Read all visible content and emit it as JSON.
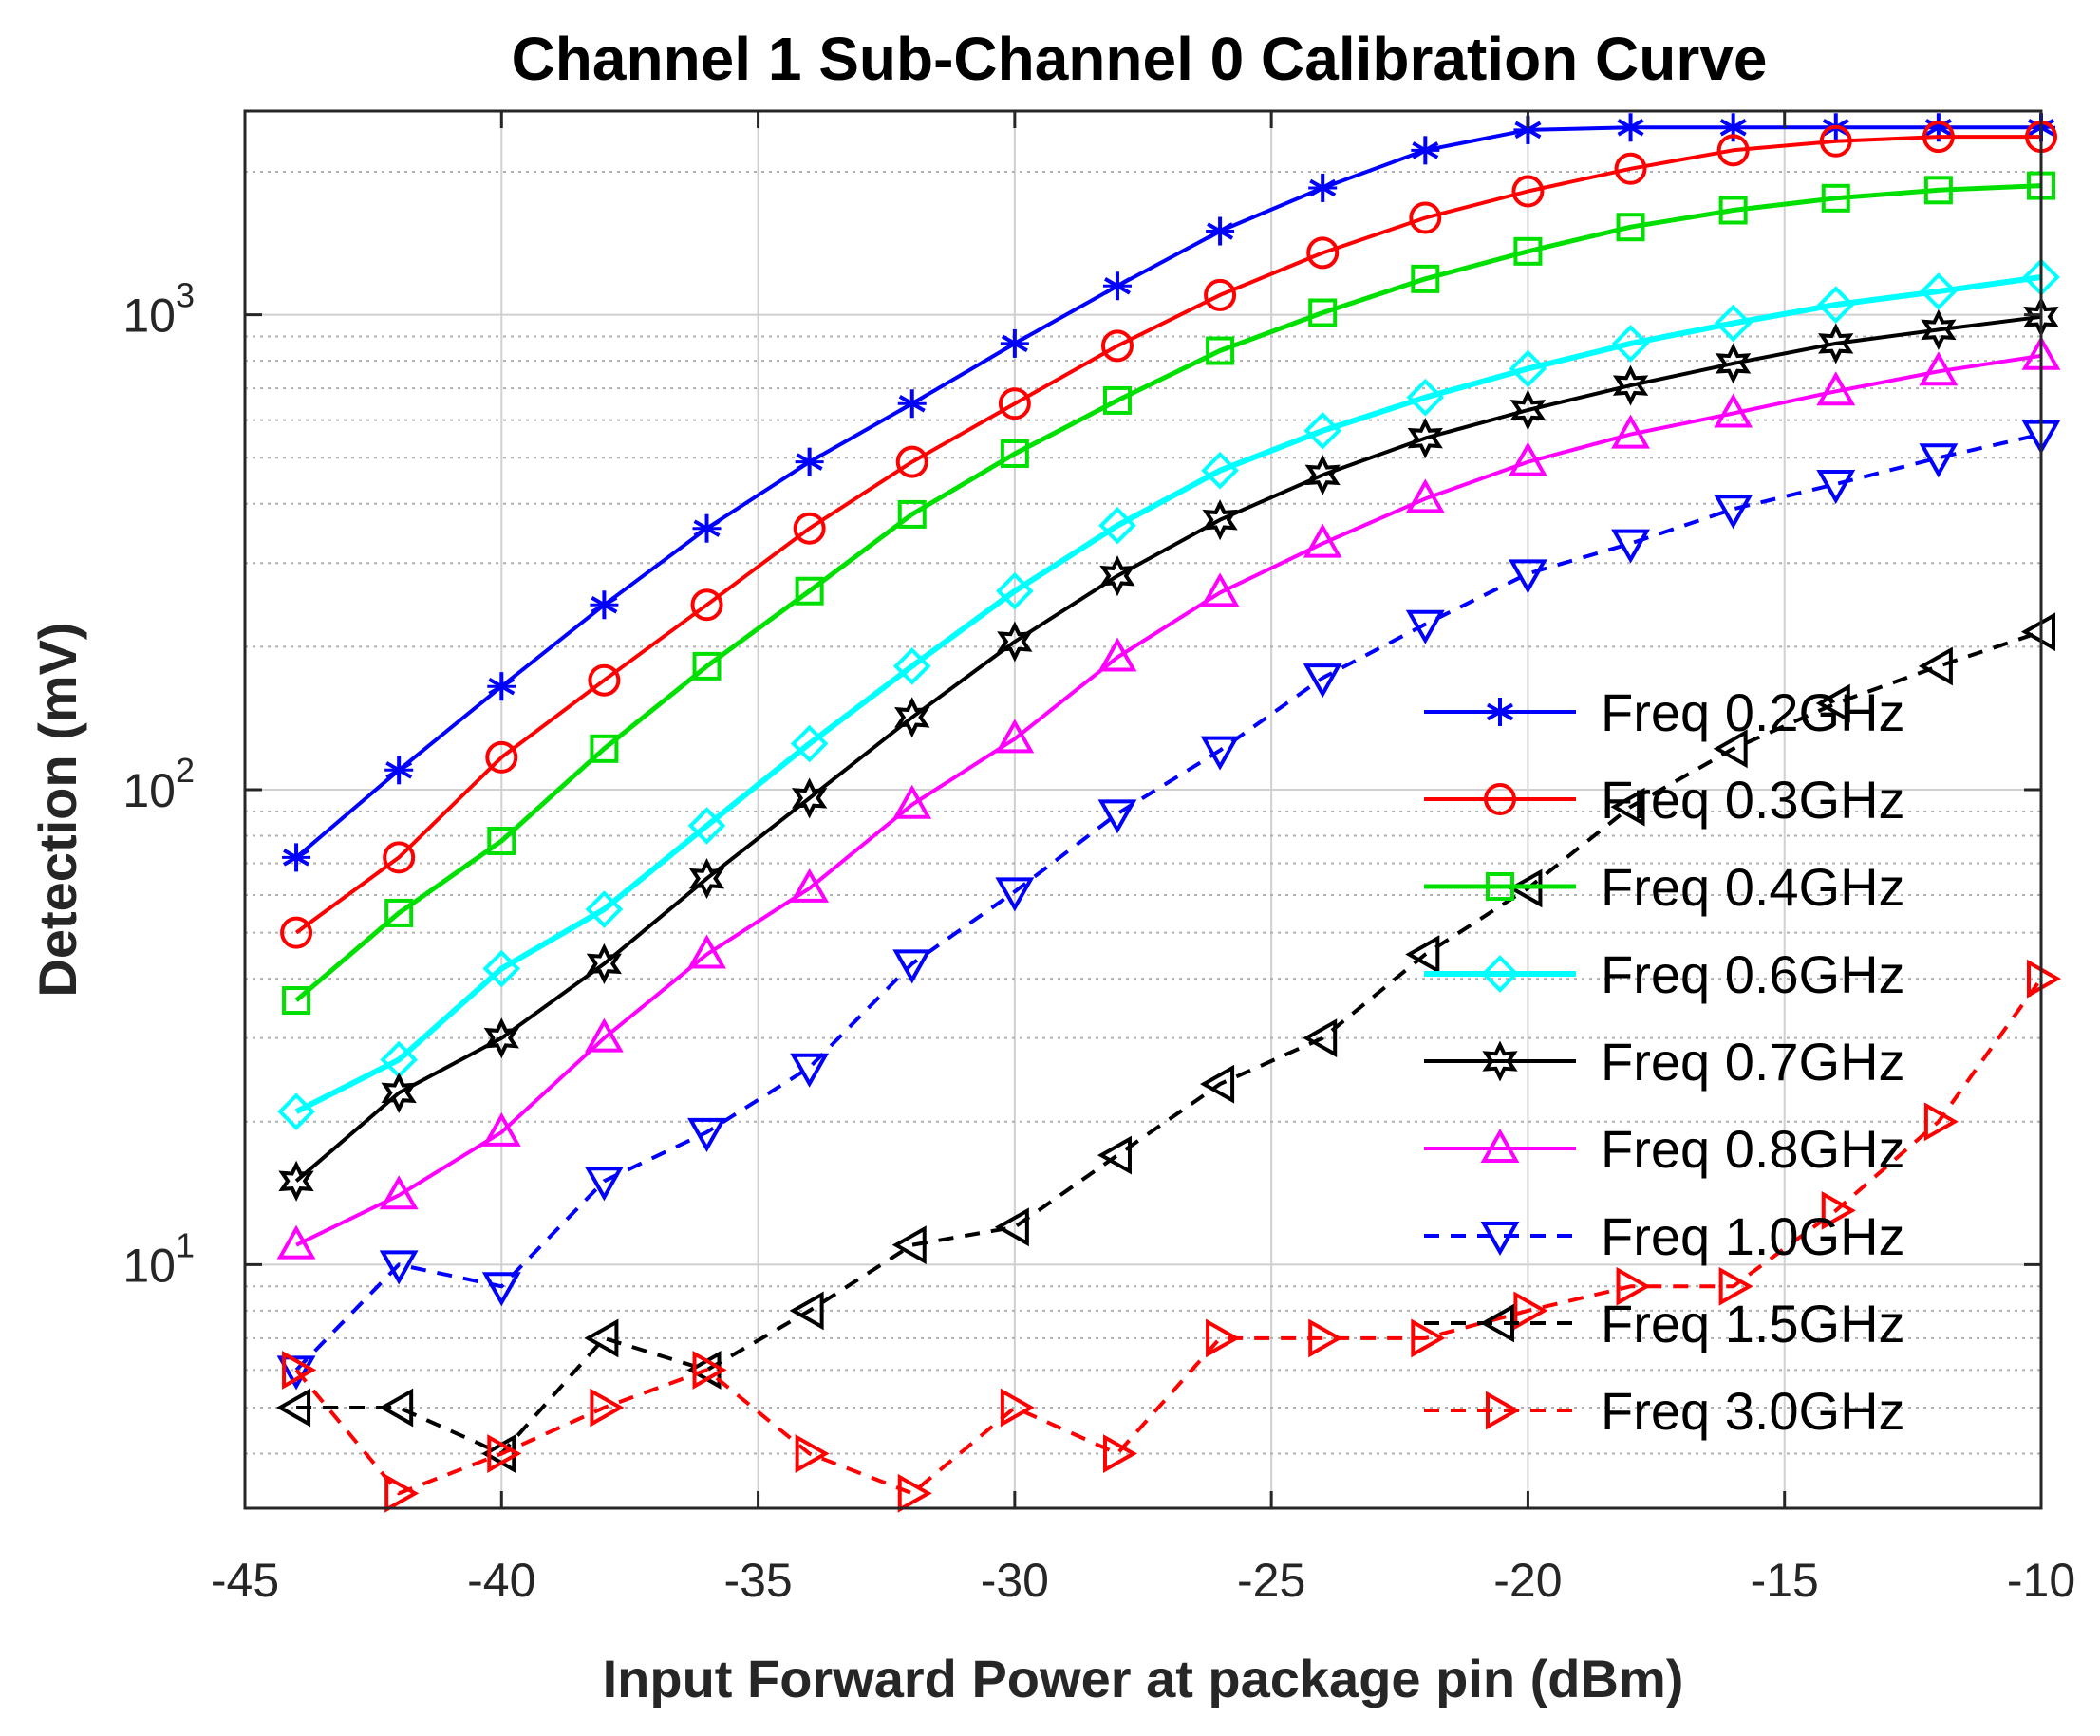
{
  "colors": {
    "blue": "#0000ff",
    "red": "#ff0000",
    "green": "#00e000",
    "cyan": "#00ffff",
    "black": "#000000",
    "magenta": "#ff00ff",
    "grid": "#d0d0d0",
    "minor_grid": "#b0b0b0"
  },
  "chart_data": {
    "type": "line",
    "title": "Channel 1 Sub-Channel 0 Calibration Curve",
    "xlabel": "Input Forward Power at package pin (dBm)",
    "ylabel": "Detection (mV)",
    "xlim": [
      -45,
      -10
    ],
    "ylim": [
      3.2,
      2600
    ],
    "yscale": "log",
    "grid": true,
    "legend_position": "bottom-right",
    "x_ticks": [
      -45,
      -40,
      -35,
      -30,
      -25,
      -20,
      -15,
      -10
    ],
    "x_tick_labels": [
      "-45",
      "-40",
      "-35",
      "-30",
      "-25",
      "-20",
      "-15",
      "-10"
    ],
    "y_ticks": [
      10,
      100,
      1000
    ],
    "y_tick_labels": [
      {
        "base": "10",
        "exp": "1"
      },
      {
        "base": "10",
        "exp": "2"
      },
      {
        "base": "10",
        "exp": "3"
      }
    ],
    "x": [
      -44,
      -42,
      -40,
      -38,
      -36,
      -34,
      -32,
      -30,
      -28,
      -26,
      -24,
      -22,
      -20,
      -18,
      -16,
      -14,
      -12,
      -10
    ],
    "series": [
      {
        "name": "Freq 0.2GHz",
        "color": "#0000ff",
        "marker": "asterisk",
        "dash": false,
        "width": 4,
        "values": [
          72,
          110,
          165,
          245,
          355,
          490,
          650,
          870,
          1150,
          1500,
          1850,
          2220,
          2450,
          2480,
          2480,
          2480,
          2480,
          2480
        ]
      },
      {
        "name": "Freq 0.3GHz",
        "color": "#ff0000",
        "marker": "circle",
        "dash": false,
        "width": 4,
        "values": [
          50,
          72,
          117,
          170,
          245,
          355,
          490,
          650,
          860,
          1100,
          1350,
          1600,
          1820,
          2030,
          2220,
          2320,
          2370,
          2370
        ]
      },
      {
        "name": "Freq 0.4GHz",
        "color": "#00e000",
        "marker": "square",
        "dash": false,
        "width": 5,
        "values": [
          36,
          55,
          78,
          122,
          182,
          262,
          380,
          510,
          660,
          840,
          1010,
          1190,
          1360,
          1530,
          1660,
          1760,
          1830,
          1870
        ]
      },
      {
        "name": "Freq 0.6GHz",
        "color": "#00ffff",
        "marker": "diamond",
        "dash": false,
        "width": 6,
        "values": [
          21,
          27,
          42,
          56,
          84,
          125,
          182,
          262,
          360,
          470,
          570,
          670,
          770,
          870,
          960,
          1050,
          1120,
          1200
        ]
      },
      {
        "name": "Freq 0.7GHz",
        "color": "#000000",
        "marker": "hexagram",
        "dash": false,
        "width": 4,
        "values": [
          15,
          23,
          30,
          43,
          65,
          96,
          142,
          205,
          282,
          370,
          460,
          550,
          630,
          710,
          790,
          870,
          930,
          990
        ]
      },
      {
        "name": "Freq 0.8GHz",
        "color": "#ff00ff",
        "marker": "triangle-up",
        "dash": false,
        "width": 4,
        "values": [
          11,
          14,
          19,
          30,
          45,
          62,
          93,
          128,
          190,
          260,
          330,
          410,
          490,
          560,
          620,
          690,
          760,
          820
        ]
      },
      {
        "name": "Freq 1.0GHz",
        "color": "#0000ff",
        "marker": "triangle-down",
        "dash": true,
        "width": 4,
        "values": [
          6,
          10,
          9,
          15,
          19,
          26,
          43,
          61,
          89,
          121,
          172,
          223,
          285,
          330,
          390,
          440,
          500,
          560
        ]
      },
      {
        "name": "Freq 1.5GHz",
        "color": "#000000",
        "marker": "triangle-left",
        "dash": true,
        "width": 4,
        "values": [
          5,
          5,
          4,
          7,
          6,
          8,
          11,
          12,
          17,
          24,
          30,
          45,
          62,
          92,
          122,
          152,
          182,
          215
        ]
      },
      {
        "name": "Freq 3.0GHz",
        "color": "#ff0000",
        "marker": "triangle-right",
        "dash": true,
        "width": 4,
        "values": [
          6,
          3.3,
          4,
          5,
          6,
          4,
          3.3,
          5,
          4,
          7,
          7,
          7,
          8,
          9,
          9,
          13,
          20,
          40
        ]
      }
    ]
  }
}
